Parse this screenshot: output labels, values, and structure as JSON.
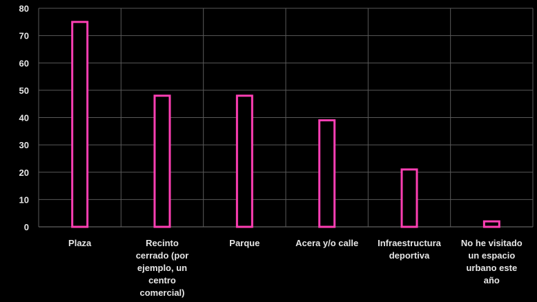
{
  "chart_data": {
    "type": "bar",
    "title": "",
    "xlabel": "",
    "ylabel": "",
    "categories": [
      "Plaza",
      "Recinto cerrado (por ejemplo, un centro comercial)",
      "Parque",
      "Acera y/o calle",
      "Infraestructura deportiva",
      "No he visitado un espacio urbano este año"
    ],
    "category_lines": [
      [
        "Plaza"
      ],
      [
        "Recinto",
        "cerrado (por",
        "ejemplo, un",
        "centro",
        "comercial)"
      ],
      [
        "Parque"
      ],
      [
        "Acera y/o calle"
      ],
      [
        "Infraestructura",
        "deportiva"
      ],
      [
        "No he visitado",
        "un espacio",
        "urbano este",
        "año"
      ]
    ],
    "values": [
      75,
      48,
      48,
      39,
      21,
      2
    ],
    "ylim": [
      0,
      80
    ],
    "yticks": [
      "0",
      "10",
      "20",
      "30",
      "40",
      "50",
      "60",
      "70",
      "80"
    ],
    "grid": true,
    "legend": "none",
    "colors": {
      "background": "#000000",
      "bar_stroke": "#ff3fb4",
      "bar_fill": "#000000",
      "grid": "#5a5a5a",
      "axis": "#7a7a7a",
      "text": "#e6e6e6"
    }
  }
}
